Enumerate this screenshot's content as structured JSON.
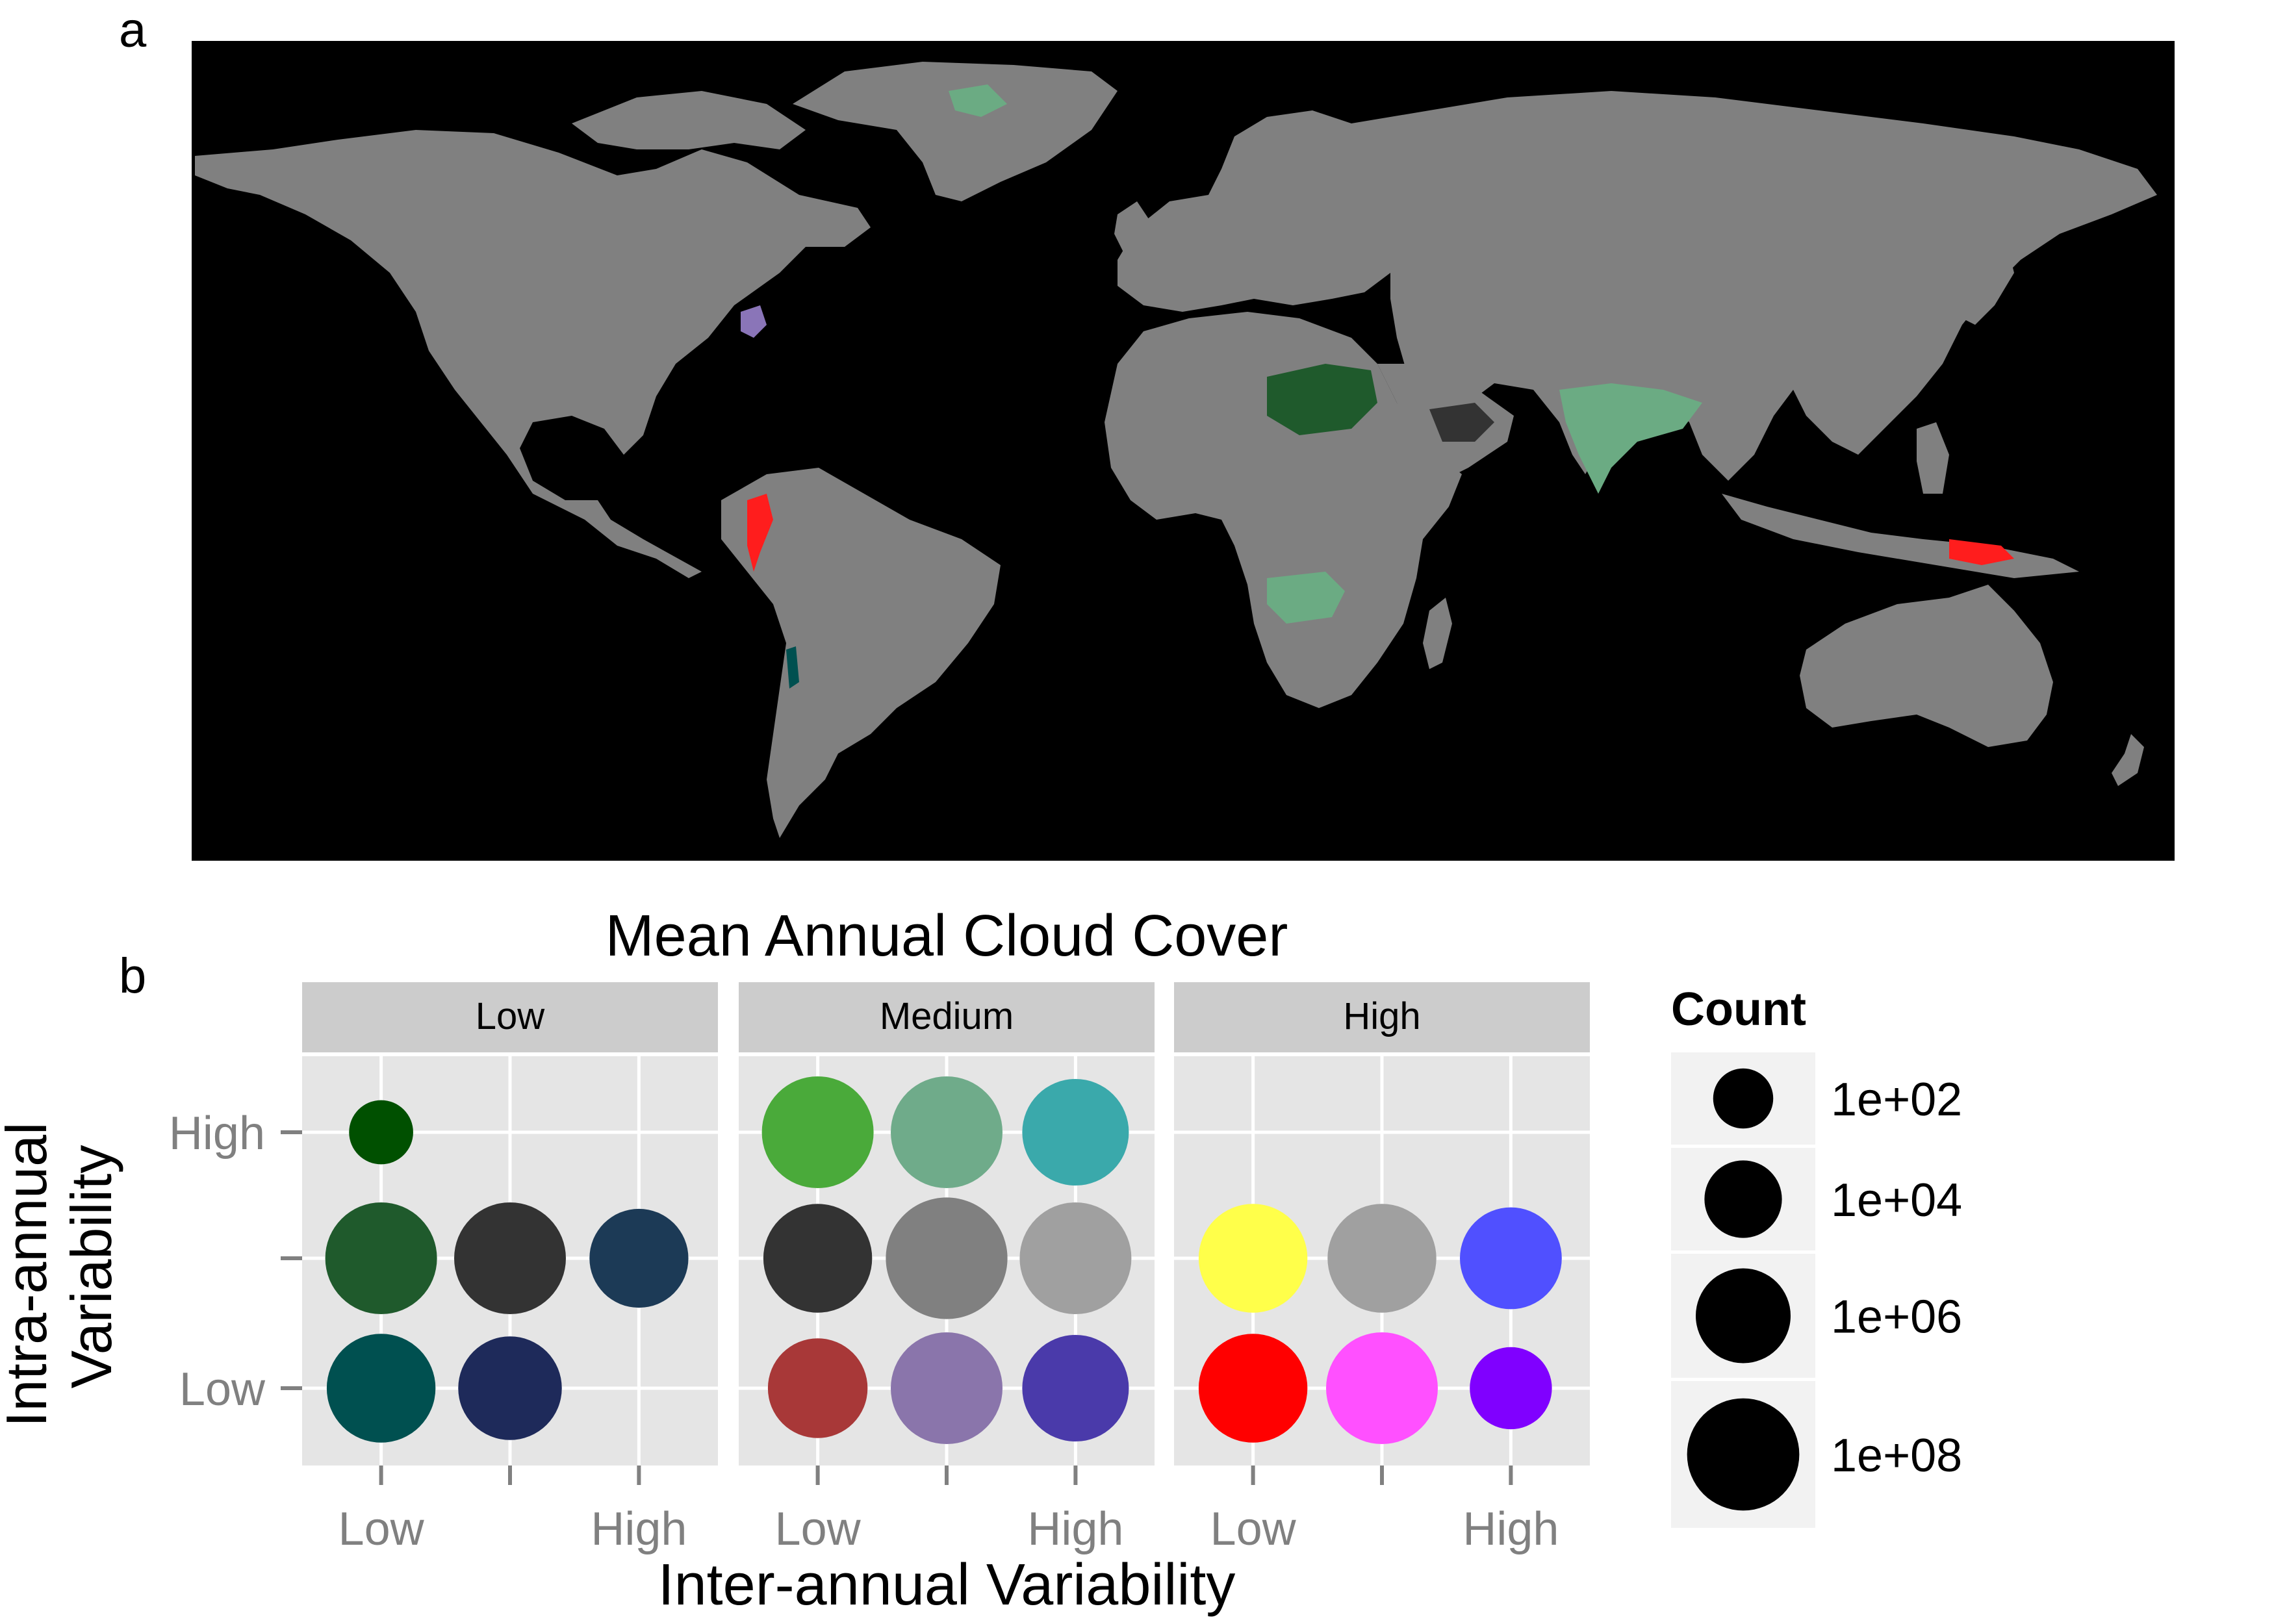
{
  "panel_labels": {
    "a": "a",
    "b": "b"
  },
  "colors": {
    "ocean": "#000000",
    "land": "#808080",
    "strip_bg": "#cccccc",
    "panel_bg": "#e5e5e5",
    "grid": "#ffffff",
    "tick_text": "#808080",
    "tick_mark": "#808080"
  },
  "map": {
    "regions": [
      {
        "label": "Sahara",
        "color": "#1f5a2c"
      },
      {
        "label": "Arabia",
        "color": "#333333"
      },
      {
        "label": "India",
        "color": "#6bab83"
      },
      {
        "label": "Southern Africa",
        "color": "#6bab83"
      },
      {
        "label": "Greenland",
        "color": "#6bab83"
      },
      {
        "label": "Andes",
        "color": "#ff1d1d"
      },
      {
        "label": "Indonesia",
        "color": "#ff1d1d"
      },
      {
        "label": "Eastern US",
        "color": "#8a75b8"
      },
      {
        "label": "Atacama",
        "color": "#005050"
      }
    ]
  },
  "chart_data": {
    "type": "scatter",
    "title": "Mean Annual Cloud Cover",
    "xlabel": "Inter-annual Variability",
    "ylabel": "Intra-annual Variability",
    "facets": [
      "Low",
      "Medium",
      "High"
    ],
    "x_ticks": [
      "Low",
      "",
      "High"
    ],
    "y_ticks": [
      "High",
      "",
      "Low"
    ],
    "legend": {
      "title": "Count",
      "position": "right",
      "entries": [
        {
          "label": "1e+02",
          "value": 100
        },
        {
          "label": "1e+04",
          "value": 10000
        },
        {
          "label": "1e+06",
          "value": 1000000
        },
        {
          "label": "1e+08",
          "value": 100000000
        }
      ]
    },
    "points": [
      {
        "facet": "Low",
        "x": "Low",
        "y": "High",
        "count": 150,
        "color": "#005000"
      },
      {
        "facet": "Low",
        "x": "Low",
        "y": "Medium",
        "count": 10000000,
        "color": "#1f5a2c"
      },
      {
        "facet": "Low",
        "x": "Medium",
        "y": "Medium",
        "count": 10000000,
        "color": "#333333"
      },
      {
        "facet": "Low",
        "x": "High",
        "y": "Medium",
        "count": 500000,
        "color": "#1c3a56"
      },
      {
        "facet": "Low",
        "x": "Low",
        "y": "Low",
        "count": 5000000,
        "color": "#005050"
      },
      {
        "facet": "Low",
        "x": "Medium",
        "y": "Low",
        "count": 1500000,
        "color": "#1e2a5a"
      },
      {
        "facet": "Medium",
        "x": "Low",
        "y": "High",
        "count": 10000000,
        "color": "#4aaa3a"
      },
      {
        "facet": "Medium",
        "x": "Medium",
        "y": "High",
        "count": 10000000,
        "color": "#6fab8a"
      },
      {
        "facet": "Medium",
        "x": "High",
        "y": "High",
        "count": 3000000,
        "color": "#3aa9ab"
      },
      {
        "facet": "Medium",
        "x": "Low",
        "y": "Medium",
        "count": 5000000,
        "color": "#333333"
      },
      {
        "facet": "Medium",
        "x": "Medium",
        "y": "Medium",
        "count": 100000000,
        "color": "#808080"
      },
      {
        "facet": "Medium",
        "x": "High",
        "y": "Medium",
        "count": 10000000,
        "color": "#a0a0a0"
      },
      {
        "facet": "Medium",
        "x": "Low",
        "y": "Low",
        "count": 600000,
        "color": "#a83838"
      },
      {
        "facet": "Medium",
        "x": "Medium",
        "y": "Low",
        "count": 10000000,
        "color": "#8a75ab"
      },
      {
        "facet": "Medium",
        "x": "High",
        "y": "Low",
        "count": 3000000,
        "color": "#4a3aaa"
      },
      {
        "facet": "High",
        "x": "Low",
        "y": "Medium",
        "count": 5000000,
        "color": "#ffff4a"
      },
      {
        "facet": "High",
        "x": "Medium",
        "y": "Medium",
        "count": 5000000,
        "color": "#a0a0a0"
      },
      {
        "facet": "High",
        "x": "High",
        "y": "Medium",
        "count": 1000000,
        "color": "#5050ff"
      },
      {
        "facet": "High",
        "x": "Low",
        "y": "Low",
        "count": 5000000,
        "color": "#ff0000"
      },
      {
        "facet": "High",
        "x": "Medium",
        "y": "Low",
        "count": 10000000,
        "color": "#ff50ff"
      },
      {
        "facet": "High",
        "x": "High",
        "y": "Low",
        "count": 10000,
        "color": "#8000ff"
      }
    ]
  }
}
